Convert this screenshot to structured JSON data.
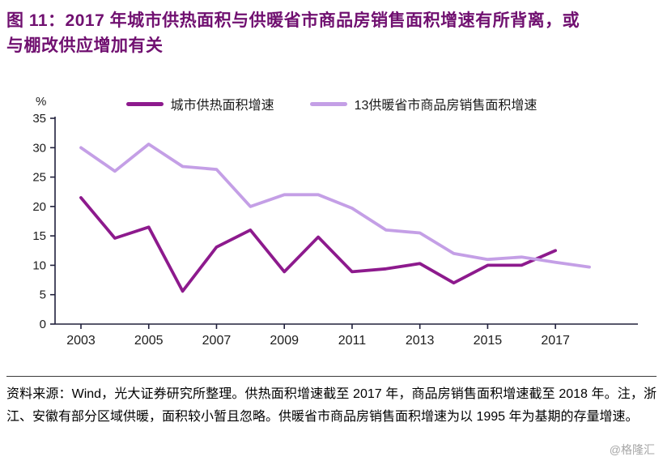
{
  "figure": {
    "title_line1": "图 11：2017 年城市供热面积与供暖省市商品房销售面积增速有所背离，或",
    "title_line2": "与棚改供应增加有关",
    "source_note": "资料来源：Wind，光大证券研究所整理。供热面积增速截至 2017 年，商品房销售面积增速截至 2018 年。注，浙江、安徽有部分区域供暖，面积较小暂且忽略。供暖省市商品房销售面积增速为以 1995 年为基期的存量增速。",
    "watermark": "@格隆汇"
  },
  "chart_data": {
    "type": "line",
    "title": "2017年城市供热面积与供暖省市商品房销售面积增速有所背离",
    "unit_label": "%",
    "xlabel": "",
    "ylabel": "%",
    "ylim": [
      0,
      35
    ],
    "ytick_step": 5,
    "x": [
      2003,
      2004,
      2005,
      2006,
      2007,
      2008,
      2009,
      2010,
      2011,
      2012,
      2013,
      2014,
      2015,
      2016,
      2017,
      2018
    ],
    "xticks": [
      2003,
      2005,
      2007,
      2009,
      2011,
      2013,
      2015,
      2017
    ],
    "grid": false,
    "legend_position": "top",
    "axis_color": "#20203c",
    "series": [
      {
        "name": "城市供热面积增速",
        "color": "#8d1a8d",
        "values": [
          21.5,
          14.6,
          16.5,
          5.6,
          13.1,
          16.0,
          8.9,
          14.8,
          8.9,
          9.4,
          10.3,
          7.0,
          10.0,
          10.0,
          12.5
        ]
      },
      {
        "name": "13供暖省市商品房销售面积增速",
        "color": "#c49fe6",
        "values": [
          30.0,
          26.0,
          30.6,
          26.8,
          26.3,
          20.0,
          22.0,
          22.0,
          19.7,
          16.0,
          15.5,
          12.0,
          11.0,
          11.4,
          10.5,
          9.7
        ]
      }
    ]
  }
}
